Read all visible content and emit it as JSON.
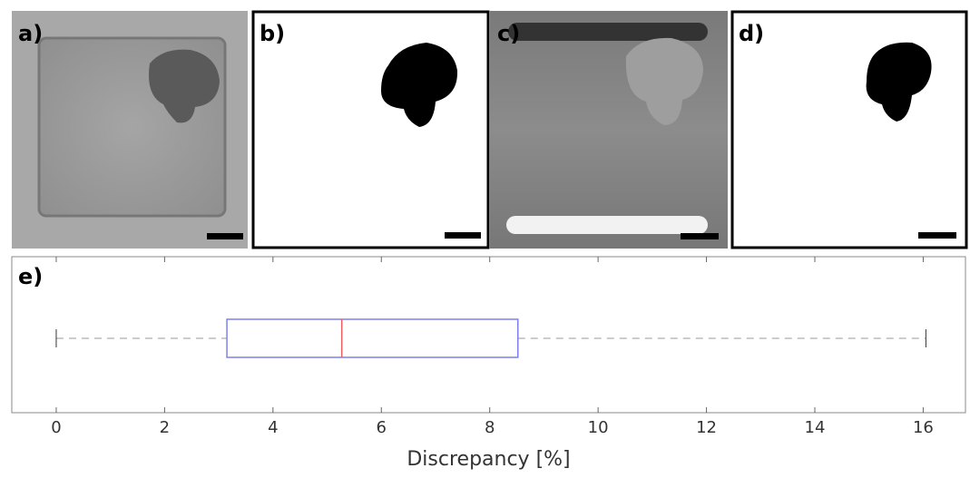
{
  "panels": [
    {
      "label": "a)"
    },
    {
      "label": "b)"
    },
    {
      "label": "c)"
    },
    {
      "label": "d)"
    }
  ],
  "chart_data": {
    "type": "box",
    "title": "e)",
    "x_label": "Discrepancy [%]",
    "boxes": [
      {
        "min": 0,
        "q1": 3.15,
        "median": 5.27,
        "q3": 8.52,
        "max": 16.05
      }
    ],
    "box_color": "#7f7fef",
    "median_color": "#ef5f5f",
    "whisker_color": "#9a9a9a",
    "xlim": [
      -0.82,
      16.78
    ],
    "xticks": [
      0,
      2,
      4,
      6,
      8,
      10,
      12,
      14,
      16
    ]
  }
}
